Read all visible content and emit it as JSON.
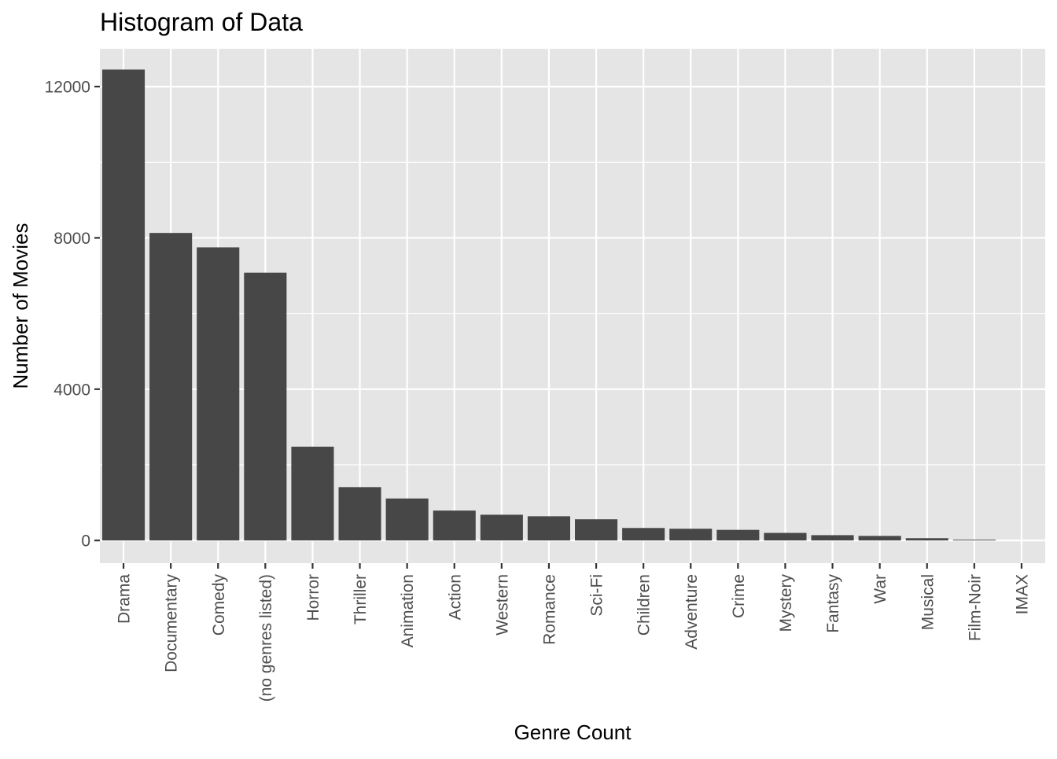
{
  "chart_data": {
    "type": "bar",
    "title": "Histogram of Data",
    "xlabel": "Genre Count",
    "ylabel": "Number of Movies",
    "categories": [
      "Drama",
      "Documentary",
      "Comedy",
      "(no genres listed)",
      "Horror",
      "Thriller",
      "Animation",
      "Action",
      "Western",
      "Romance",
      "Sci-Fi",
      "Children",
      "Adventure",
      "Crime",
      "Mystery",
      "Fantasy",
      "War",
      "Musical",
      "Film-Noir",
      "IMAX"
    ],
    "values": [
      12450,
      8130,
      7750,
      7080,
      2480,
      1410,
      1110,
      790,
      680,
      640,
      560,
      330,
      310,
      280,
      200,
      140,
      120,
      60,
      20,
      0
    ],
    "yticks": [
      0,
      4000,
      8000,
      12000
    ],
    "ytick_labels": [
      "0",
      "4000",
      "8000",
      "12000"
    ],
    "ylim": [
      -600,
      13000
    ],
    "grid": true,
    "colors": {
      "bar": "#474747",
      "panel": "#e5e5e5",
      "grid_major": "#ffffff",
      "tick": "#333333",
      "tick_label": "#4d4d4d"
    }
  }
}
